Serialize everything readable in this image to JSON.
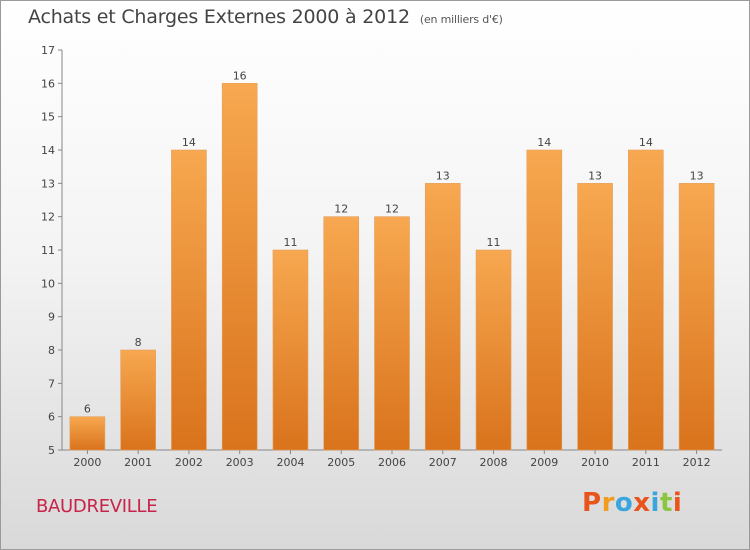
{
  "header": {
    "title": "Achats et Charges Externes 2000 à 2012",
    "unit": "(en milliers d'€)"
  },
  "footer": {
    "commune": "BAUDREVILLE",
    "brand": "Proxiti"
  },
  "colors": {
    "bar_light": "#f7a850",
    "bar_dark": "#d9731c",
    "commune_text": "#c8234a",
    "brand_letters": [
      "#e8541c",
      "#f29c1f",
      "#3aa6dd",
      "#e8541c",
      "#3aa6dd",
      "#8cc63f",
      "#e8541c"
    ]
  },
  "chart_data": {
    "type": "bar",
    "categories": [
      "2000",
      "2001",
      "2002",
      "2003",
      "2004",
      "2005",
      "2006",
      "2007",
      "2008",
      "2009",
      "2010",
      "2011",
      "2012"
    ],
    "values": [
      6,
      8,
      14,
      16,
      11,
      12,
      12,
      13,
      11,
      14,
      13,
      14,
      13
    ],
    "ylim": [
      5,
      17
    ],
    "yticks": [
      5,
      6,
      7,
      8,
      9,
      10,
      11,
      12,
      13,
      14,
      15,
      16,
      17
    ],
    "grid": false,
    "legend": "none",
    "data_labels": true
  }
}
